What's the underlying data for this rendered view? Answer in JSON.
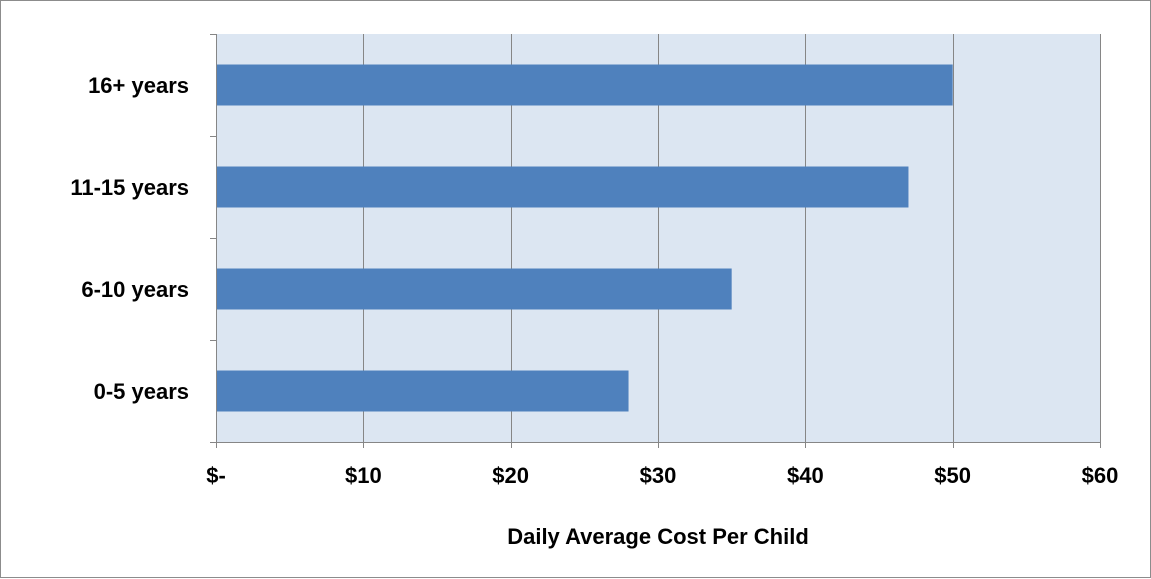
{
  "chart_data": {
    "type": "bar",
    "orientation": "horizontal",
    "title": "",
    "xlabel": "Daily Average Cost Per Child",
    "ylabel": "",
    "categories": [
      "16+ years",
      "11-15 years",
      "6-10 years",
      "0-5 years"
    ],
    "values": [
      50,
      47,
      35,
      28
    ],
    "xlim": [
      0,
      60
    ],
    "x_ticks": [
      0,
      10,
      20,
      30,
      40,
      50,
      60
    ],
    "x_tick_labels": [
      "$-",
      "$10",
      "$20",
      "$30",
      "$40",
      "$50",
      "$60"
    ],
    "grid": "vertical major gridlines",
    "legend": "none",
    "colors": {
      "bar": "#4f81bd",
      "plot_background": "#dce6f2",
      "gridline": "#868686",
      "axis": "#868686",
      "frame": "#8c8c8c"
    }
  }
}
